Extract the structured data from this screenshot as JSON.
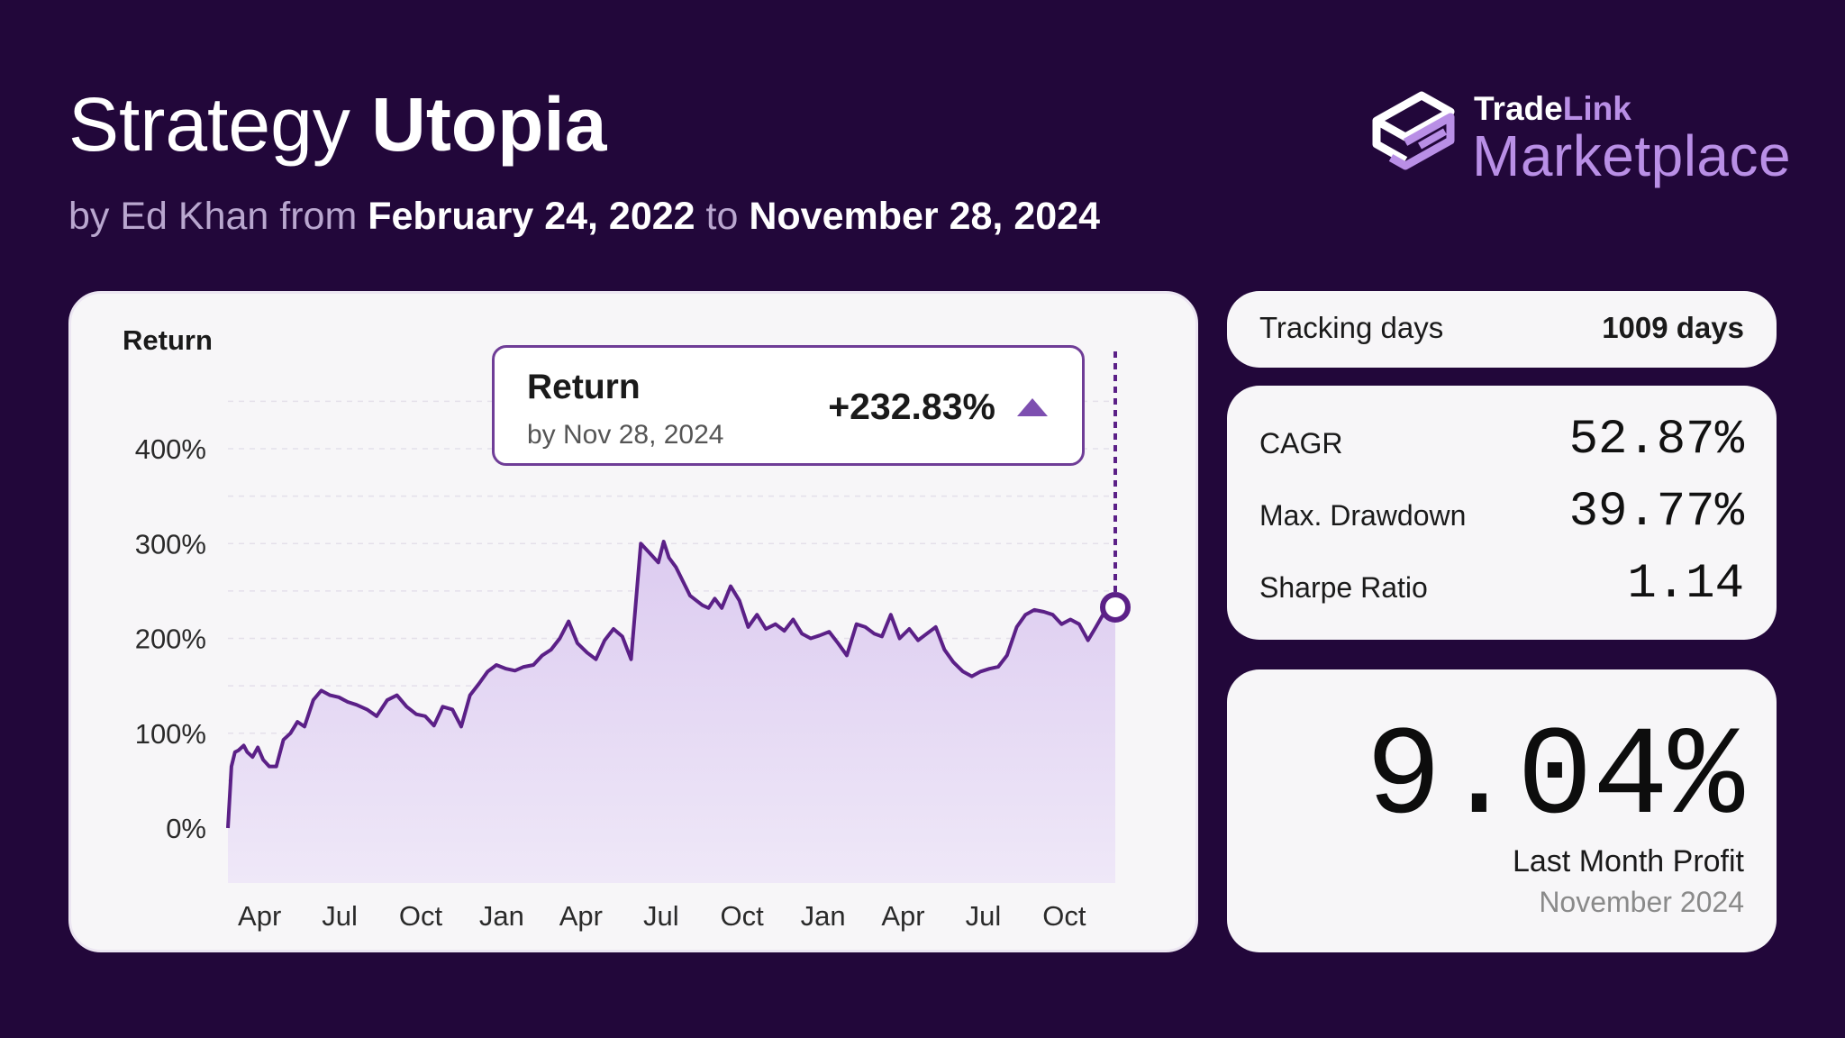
{
  "header": {
    "title_prefix": "Strategy",
    "title_name": "Utopia",
    "by_text": "by Ed Khan from",
    "start_date": "February 24, 2022",
    "to_text": "to",
    "end_date": "November 28, 2024"
  },
  "brand": {
    "line1_a": "Trade",
    "line1_b": "Link",
    "line2": "Marketplace",
    "accent": "#b98fe6"
  },
  "tooltip": {
    "title": "Return",
    "subtitle": "by Nov 28, 2024",
    "value": "+232.83%"
  },
  "stats": {
    "tracking_label": "Tracking days",
    "tracking_value": "1009 days",
    "metrics": [
      {
        "label": "CAGR",
        "value": "52.87%"
      },
      {
        "label": "Max. Drawdown",
        "value": "39.77%"
      },
      {
        "label": "Sharpe Ratio",
        "value": "1.14"
      }
    ],
    "last_month_value": "9.04%",
    "last_month_label": "Last Month Profit",
    "last_month_period": "November 2024"
  },
  "chart_data": {
    "type": "area",
    "title": "Return",
    "ylim": [
      -50,
      450
    ],
    "yticks": [
      0,
      100,
      200,
      300,
      400
    ],
    "ytick_labels": [
      "0%",
      "100%",
      "200%",
      "300%",
      "400%"
    ],
    "xticks": [
      "2022-04-01",
      "2022-07-01",
      "2022-10-01",
      "2023-01-01",
      "2023-04-01",
      "2023-07-01",
      "2023-10-01",
      "2024-01-01",
      "2024-04-01",
      "2024-07-01",
      "2024-10-01"
    ],
    "xtick_labels": [
      "Apr",
      "Jul",
      "Oct",
      "Jan",
      "Apr",
      "Jul",
      "Oct",
      "Jan",
      "Apr",
      "Jul",
      "Oct"
    ],
    "xlim": [
      "2022-02-24",
      "2024-11-28"
    ],
    "colors": {
      "line": "#5b2087",
      "fill_top": "#dccbf0",
      "fill_bottom": "#efe8f8"
    },
    "series": [
      {
        "x": [
          "2022-02-24",
          "2022-02-28",
          "2022-03-04",
          "2022-03-08",
          "2022-03-14",
          "2022-03-18",
          "2022-03-24",
          "2022-03-30",
          "2022-04-05",
          "2022-04-12",
          "2022-04-20",
          "2022-04-28",
          "2022-05-06",
          "2022-05-14",
          "2022-05-22",
          "2022-06-01",
          "2022-06-10",
          "2022-06-20",
          "2022-06-30",
          "2022-07-10",
          "2022-07-20",
          "2022-08-01",
          "2022-08-12",
          "2022-08-24",
          "2022-09-04",
          "2022-09-15",
          "2022-09-26",
          "2022-10-06",
          "2022-10-16",
          "2022-10-26",
          "2022-11-06",
          "2022-11-16",
          "2022-11-26",
          "2022-12-06",
          "2022-12-16",
          "2022-12-26",
          "2023-01-06",
          "2023-01-16",
          "2023-01-26",
          "2023-02-06",
          "2023-02-16",
          "2023-02-26",
          "2023-03-08",
          "2023-03-18",
          "2023-03-28",
          "2023-04-08",
          "2023-04-18",
          "2023-04-28",
          "2023-05-08",
          "2023-05-18",
          "2023-05-28",
          "2023-06-08",
          "2023-06-18",
          "2023-06-28",
          "2023-07-04",
          "2023-07-10",
          "2023-07-18",
          "2023-07-26",
          "2023-08-03",
          "2023-08-10",
          "2023-08-17",
          "2023-08-24",
          "2023-08-31",
          "2023-09-08",
          "2023-09-18",
          "2023-09-28",
          "2023-10-08",
          "2023-10-18",
          "2023-10-28",
          "2023-11-08",
          "2023-11-18",
          "2023-11-28",
          "2023-12-08",
          "2023-12-18",
          "2023-12-28",
          "2024-01-08",
          "2024-01-18",
          "2024-01-28",
          "2024-02-08",
          "2024-02-18",
          "2024-02-28",
          "2024-03-08",
          "2024-03-18",
          "2024-03-28",
          "2024-04-08",
          "2024-04-18",
          "2024-04-28",
          "2024-05-08",
          "2024-05-18",
          "2024-05-28",
          "2024-06-08",
          "2024-06-18",
          "2024-06-28",
          "2024-07-08",
          "2024-07-18",
          "2024-07-28",
          "2024-08-08",
          "2024-08-18",
          "2024-08-28",
          "2024-09-08",
          "2024-09-18",
          "2024-09-28",
          "2024-10-08",
          "2024-10-18",
          "2024-10-28",
          "2024-11-06",
          "2024-11-14",
          "2024-11-20",
          "2024-11-28"
        ],
        "y": [
          0,
          65,
          80,
          82,
          87,
          80,
          75,
          85,
          72,
          65,
          65,
          93,
          100,
          112,
          107,
          135,
          145,
          140,
          138,
          133,
          130,
          125,
          118,
          135,
          140,
          128,
          120,
          118,
          108,
          128,
          125,
          107,
          140,
          152,
          165,
          172,
          168,
          166,
          170,
          172,
          182,
          188,
          200,
          218,
          195,
          185,
          178,
          198,
          210,
          202,
          178,
          300,
          290,
          280,
          302,
          285,
          275,
          260,
          245,
          240,
          235,
          232,
          242,
          232,
          255,
          240,
          212,
          225,
          210,
          215,
          208,
          220,
          205,
          200,
          203,
          207,
          195,
          182,
          215,
          212,
          205,
          202,
          225,
          200,
          210,
          198,
          205,
          212,
          188,
          175,
          165,
          160,
          165,
          168,
          170,
          182,
          212,
          225,
          230,
          228,
          225,
          215,
          220,
          215,
          198,
          212,
          225,
          240,
          232.83
        ]
      }
    ],
    "marker": {
      "x": "2024-11-28",
      "y": 232.83
    }
  }
}
